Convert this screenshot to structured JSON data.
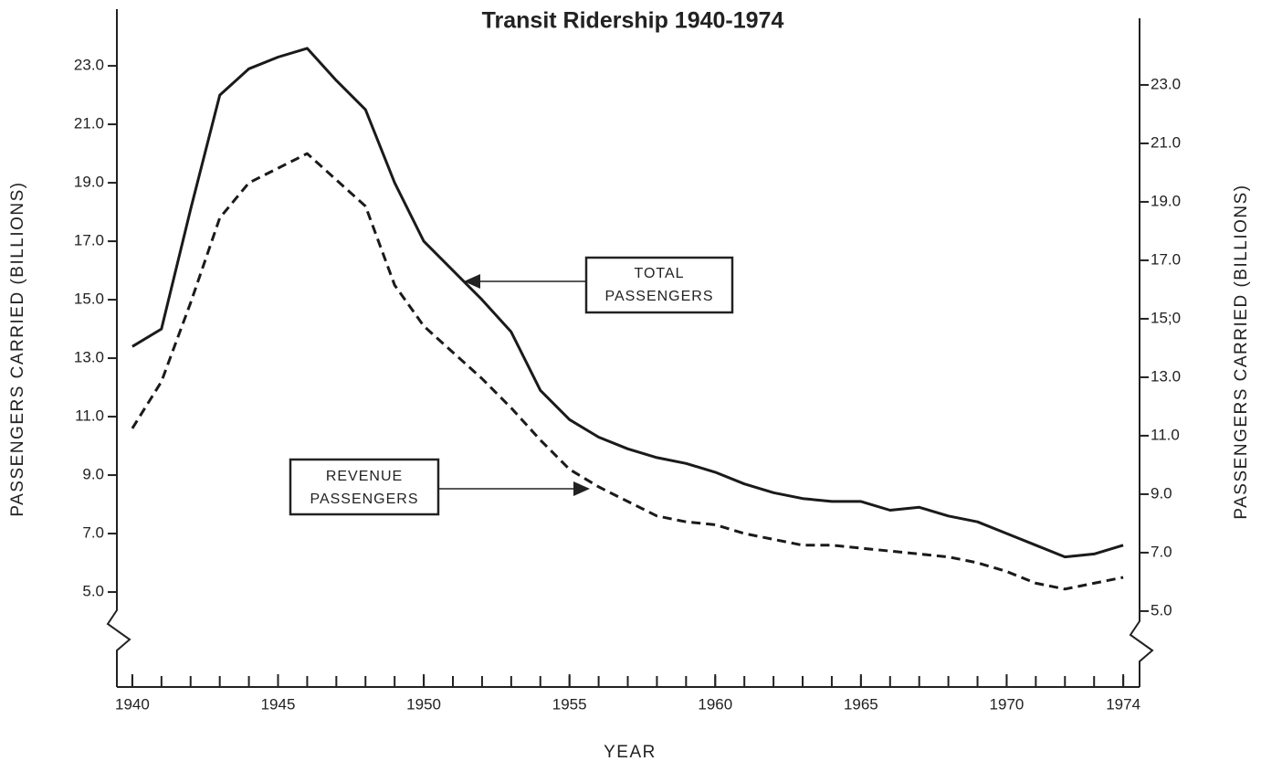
{
  "chart_data": {
    "type": "line",
    "title": "Transit Ridership 1940-1974",
    "xlabel": "YEAR",
    "ylabel": "PASSENGERS CARRIED (BILLIONS)",
    "y2label": "PASSENGERS CARRIED (BILLIONS)",
    "x": [
      1940,
      1941,
      1942,
      1943,
      1944,
      1945,
      1946,
      1947,
      1948,
      1949,
      1950,
      1951,
      1952,
      1953,
      1954,
      1955,
      1956,
      1957,
      1958,
      1959,
      1960,
      1961,
      1962,
      1963,
      1964,
      1965,
      1966,
      1967,
      1968,
      1969,
      1970,
      1971,
      1972,
      1973,
      1974
    ],
    "series": [
      {
        "name": "TOTAL PASSENGERS",
        "color": "#1a1a1a",
        "style": "solid",
        "values": [
          13.4,
          14.0,
          18.1,
          22.0,
          22.9,
          23.3,
          23.6,
          22.5,
          21.5,
          19.0,
          17.0,
          16.0,
          15.0,
          13.9,
          11.9,
          10.9,
          10.3,
          9.9,
          9.6,
          9.4,
          9.1,
          8.7,
          8.4,
          8.2,
          8.1,
          8.1,
          7.8,
          7.9,
          7.6,
          7.4,
          7.0,
          6.6,
          6.2,
          6.3,
          6.6
        ]
      },
      {
        "name": "REVENUE PASSENGERS",
        "color": "#1a1a1a",
        "style": "dashed",
        "values": [
          10.6,
          12.2,
          14.9,
          17.8,
          19.0,
          19.5,
          20.0,
          19.1,
          18.2,
          15.5,
          14.1,
          13.2,
          12.3,
          11.3,
          10.2,
          9.2,
          8.6,
          8.1,
          7.6,
          7.4,
          7.3,
          7.0,
          6.8,
          6.6,
          6.6,
          6.5,
          6.4,
          6.3,
          6.2,
          6.0,
          5.7,
          5.3,
          5.1,
          5.3,
          5.5
        ]
      }
    ],
    "annotations": [
      {
        "lines": [
          "TOTAL",
          "PASSENGERS"
        ]
      },
      {
        "lines": [
          "REVENUE",
          "PASSENGERS"
        ]
      }
    ],
    "xlim": [
      1939.47,
      1974.56
    ],
    "xticks": [
      1940,
      1945,
      1950,
      1955,
      1960,
      1965,
      1970,
      1974
    ],
    "xminor_ticks": [
      1940,
      1941,
      1942,
      1943,
      1944,
      1945,
      1946,
      1947,
      1948,
      1949,
      1950,
      1951,
      1952,
      1953,
      1954,
      1955,
      1956,
      1957,
      1958,
      1959,
      1960,
      1961,
      1962,
      1963,
      1964,
      1965,
      1966,
      1967,
      1968,
      1969,
      1970,
      1971,
      1972,
      1973,
      1974
    ],
    "ylim": [
      1.97,
      24.94
    ],
    "yticks": [
      {
        "value": 5,
        "label": "5.0"
      },
      {
        "value": 7,
        "label": "7.0"
      },
      {
        "value": 9,
        "label": "9.0"
      },
      {
        "value": 11,
        "label": "11.0"
      },
      {
        "value": 13,
        "label": "13.0"
      },
      {
        "value": 15,
        "label": "15.0"
      },
      {
        "value": 17,
        "label": "17.0"
      },
      {
        "value": 19,
        "label": "19.0"
      },
      {
        "value": 21,
        "label": "21.0"
      },
      {
        "value": 23,
        "label": "23.0"
      }
    ],
    "y2lim": [
      2.31,
      25.28
    ],
    "y2ticks": [
      {
        "value": 5,
        "label": "5.0"
      },
      {
        "value": 7,
        "label": "7.0"
      },
      {
        "value": 9,
        "label": "9.0"
      },
      {
        "value": 11,
        "label": "11.0"
      },
      {
        "value": 13,
        "label": "13.0"
      },
      {
        "value": 15,
        "label": "15;0"
      },
      {
        "value": 17,
        "label": "17.0"
      },
      {
        "value": 19,
        "label": "19.0"
      },
      {
        "value": 21,
        "label": "21.0"
      },
      {
        "value": 23,
        "label": "23.0"
      }
    ],
    "grid": false
  }
}
